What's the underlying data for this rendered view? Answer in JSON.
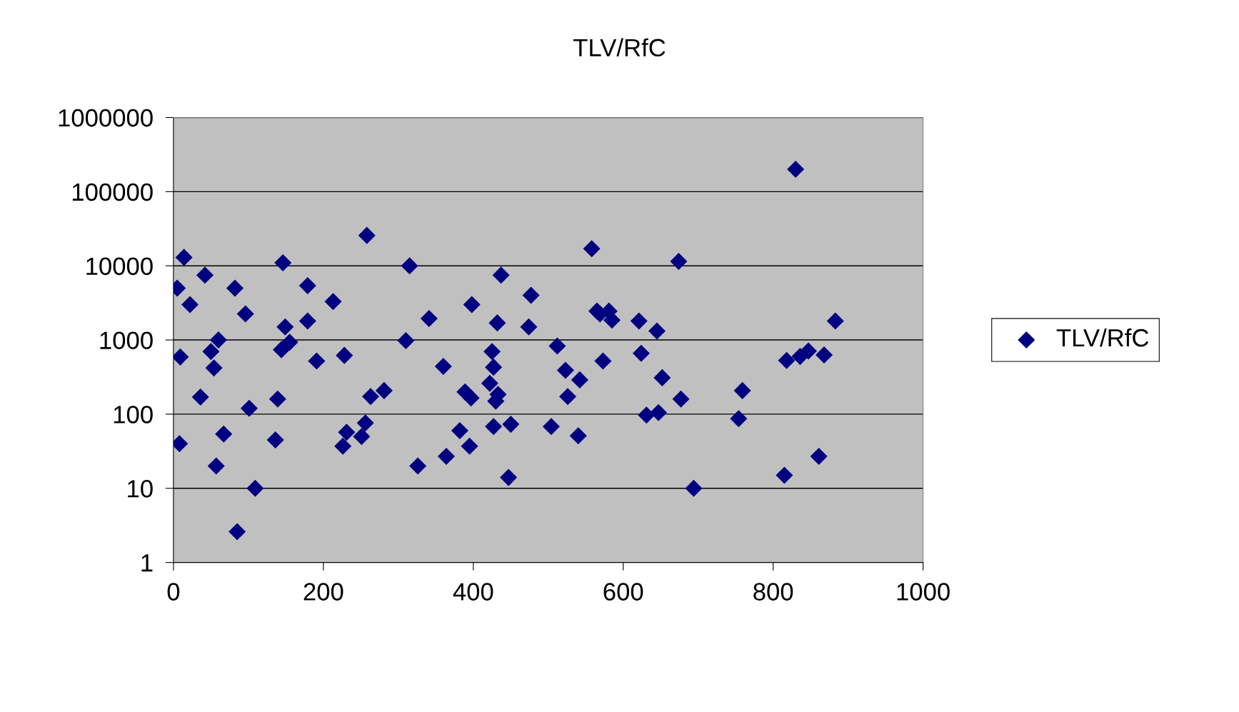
{
  "chart_data": {
    "type": "scatter",
    "title": "TLV/RfC",
    "log": "y",
    "grid": "y",
    "legend": "right",
    "marker": "diamond",
    "xlim": [
      0,
      1000
    ],
    "xticks": [
      0,
      200,
      400,
      600,
      800,
      1000
    ],
    "ylim": [
      1,
      1000000
    ],
    "yticks": [
      1,
      10,
      100,
      1000,
      10000,
      100000,
      1000000
    ],
    "series": [
      {
        "name": "TLV/RfC",
        "color": "#000080",
        "x": [
          5,
          9,
          8,
          14,
          22,
          36,
          42,
          50,
          54,
          60,
          57,
          67,
          82,
          85,
          96,
          101,
          109,
          136,
          139,
          146,
          144,
          149,
          155,
          179,
          179,
          191,
          213,
          228,
          226,
          231,
          251,
          256,
          258,
          263,
          281,
          310,
          315,
          326,
          341,
          360,
          364,
          382,
          389,
          395,
          397,
          398,
          422,
          425,
          427,
          427,
          430,
          433,
          432,
          437,
          447,
          450,
          474,
          477,
          504,
          512,
          523,
          526,
          540,
          542,
          558,
          565,
          569,
          573,
          581,
          585,
          621,
          624,
          631,
          645,
          647,
          652,
          674,
          677,
          694,
          754,
          759,
          815,
          818,
          830,
          836,
          847,
          861,
          868,
          883
        ],
        "values": [
          5000,
          590,
          40,
          13000,
          3000,
          170,
          7500,
          700,
          420,
          1000,
          20,
          54,
          5000,
          2.6,
          2250,
          120,
          10,
          45,
          160,
          11000,
          740,
          1500,
          930,
          5400,
          1800,
          520,
          3300,
          620,
          37,
          57,
          50,
          76,
          25700,
          173,
          208,
          980,
          10000,
          20,
          1950,
          440,
          27,
          60,
          200,
          37,
          165,
          3000,
          260,
          700,
          430,
          68,
          150,
          185,
          1700,
          7500,
          14,
          73,
          1500,
          4000,
          68,
          830,
          390,
          173,
          51,
          290,
          17000,
          2450,
          2250,
          520,
          2450,
          1850,
          1800,
          660,
          97,
          1320,
          105,
          310,
          11500,
          160,
          10,
          87,
          208,
          15,
          530,
          200000,
          600,
          710,
          27,
          630,
          1800
        ]
      }
    ]
  }
}
